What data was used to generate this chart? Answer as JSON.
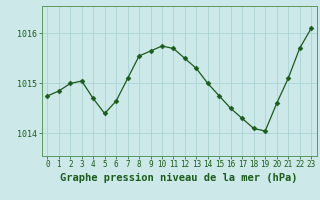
{
  "hours": [
    0,
    1,
    2,
    3,
    4,
    5,
    6,
    7,
    8,
    9,
    10,
    11,
    12,
    13,
    14,
    15,
    16,
    17,
    18,
    19,
    20,
    21,
    22,
    23
  ],
  "pressure": [
    1014.75,
    1014.85,
    1015.0,
    1015.05,
    1014.7,
    1014.4,
    1014.65,
    1015.1,
    1015.55,
    1015.65,
    1015.75,
    1015.7,
    1015.5,
    1015.3,
    1015.0,
    1014.75,
    1014.5,
    1014.3,
    1014.1,
    1014.05,
    1014.6,
    1015.1,
    1015.7,
    1016.1
  ],
  "line_color": "#1a5c1a",
  "marker": "D",
  "marker_size": 2.5,
  "bg_color": "#cce8e8",
  "grid_color": "#aad4d4",
  "title": "Graphe pression niveau de la mer (hPa)",
  "title_color": "#1a5c1a",
  "title_fontsize": 7.5,
  "title_weight": "bold",
  "ylabel_labels": [
    "1014",
    "1015",
    "1016"
  ],
  "ylim": [
    1013.55,
    1016.55
  ],
  "xlim": [
    -0.5,
    23.5
  ],
  "yticks": [
    1014,
    1015,
    1016
  ],
  "xticks": [
    0,
    1,
    2,
    3,
    4,
    5,
    6,
    7,
    8,
    9,
    10,
    11,
    12,
    13,
    14,
    15,
    16,
    17,
    18,
    19,
    20,
    21,
    22,
    23
  ],
  "tick_fontsize": 5.5,
  "tick_color": "#1a5c1a",
  "spine_color": "#5a9a5a"
}
